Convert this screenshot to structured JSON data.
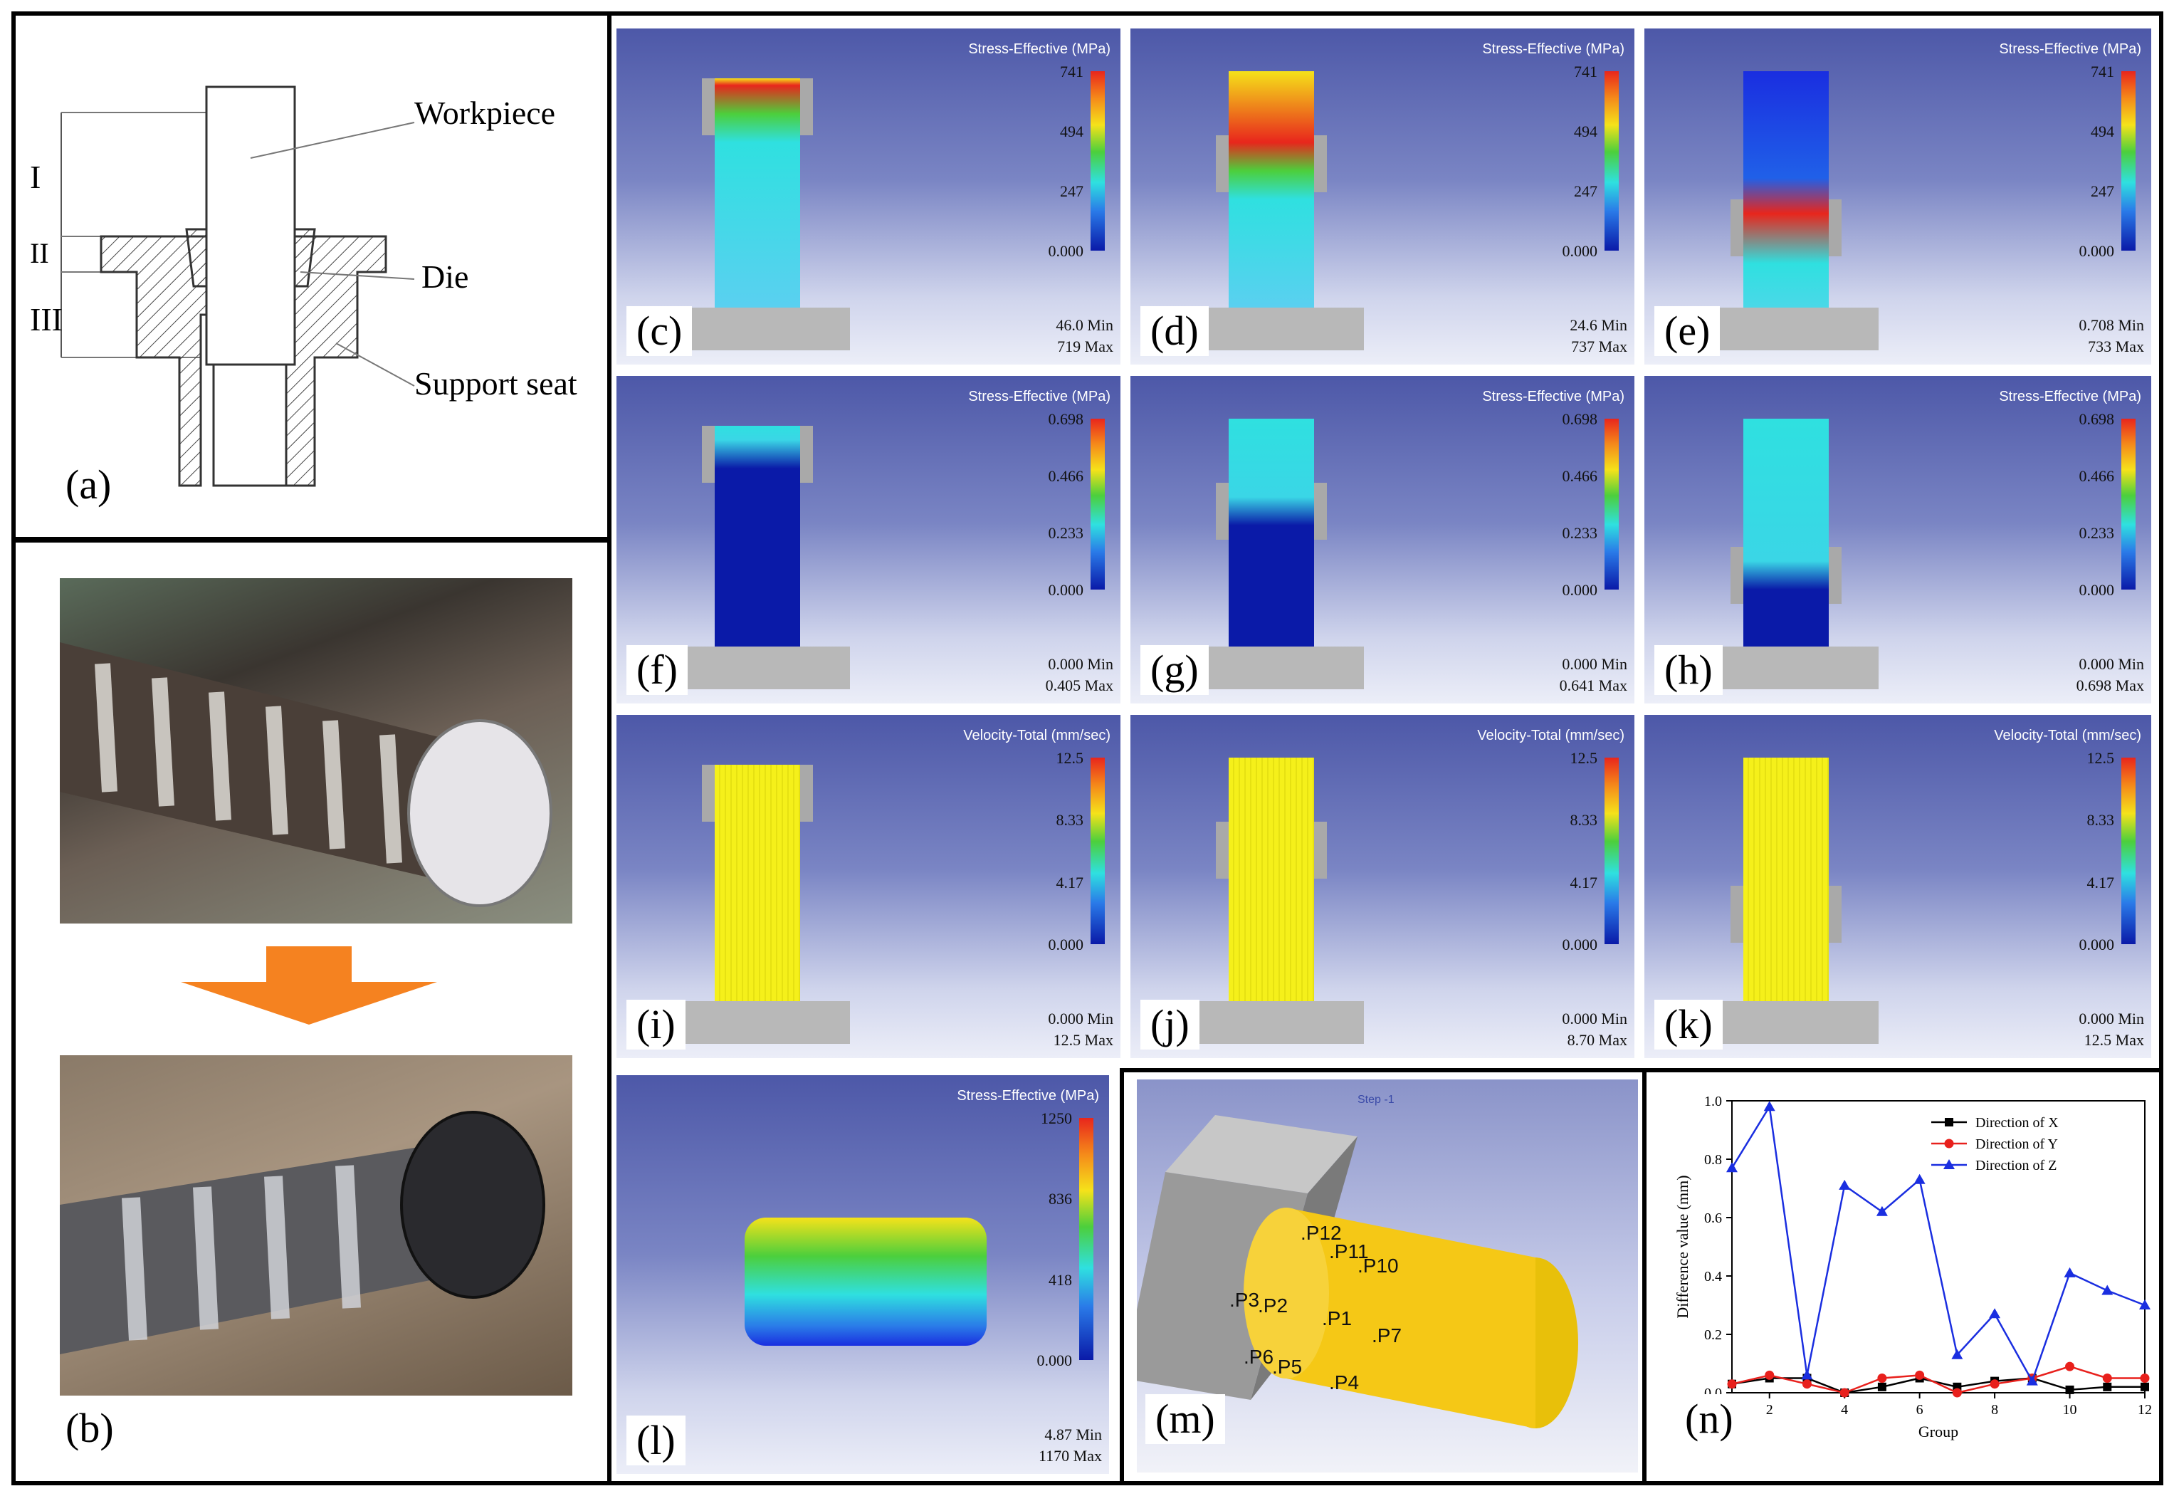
{
  "panels": {
    "a": {
      "label": "(a)",
      "workpiece": "Workpiece",
      "die": "Die",
      "support": "Support seat",
      "zones": [
        "I",
        "II",
        "III"
      ]
    },
    "b": {
      "label": "(b)"
    },
    "c": {
      "label": "(c)",
      "title": "Stress-Effective  (MPa)",
      "ticks": [
        "741",
        "494",
        "247",
        "0.000"
      ],
      "min": "46.0 Min",
      "max": "719 Max"
    },
    "d": {
      "label": "(d)",
      "title": "Stress-Effective  (MPa)",
      "ticks": [
        "741",
        "494",
        "247",
        "0.000"
      ],
      "min": "24.6 Min",
      "max": "737 Max"
    },
    "e": {
      "label": "(e)",
      "title": "Stress-Effective  (MPa)",
      "ticks": [
        "741",
        "494",
        "247",
        "0.000"
      ],
      "min": "0.708 Min",
      "max": "733 Max"
    },
    "f": {
      "label": "(f)",
      "title": "Stress-Effective  (MPa)",
      "ticks": [
        "0.698",
        "0.466",
        "0.233",
        "0.000"
      ],
      "min": "0.000 Min",
      "max": "0.405 Max"
    },
    "g": {
      "label": "(g)",
      "title": "Stress-Effective  (MPa)",
      "ticks": [
        "0.698",
        "0.466",
        "0.233",
        "0.000"
      ],
      "min": "0.000 Min",
      "max": "0.641 Max"
    },
    "h": {
      "label": "(h)",
      "title": "Stress-Effective  (MPa)",
      "ticks": [
        "0.698",
        "0.466",
        "0.233",
        "0.000"
      ],
      "min": "0.000 Min",
      "max": "0.698 Max"
    },
    "i": {
      "label": "(i)",
      "title": "Velocity-Total  (mm/sec)",
      "ticks": [
        "12.5",
        "8.33",
        "4.17",
        "0.000"
      ],
      "min": "0.000 Min",
      "max": "12.5 Max"
    },
    "j": {
      "label": "(j)",
      "title": "Velocity-Total  (mm/sec)",
      "ticks": [
        "12.5",
        "8.33",
        "4.17",
        "0.000"
      ],
      "min": "0.000 Min",
      "max": "8.70 Max"
    },
    "k": {
      "label": "(k)",
      "title": "Velocity-Total  (mm/sec)",
      "ticks": [
        "12.5",
        "8.33",
        "4.17",
        "0.000"
      ],
      "min": "0.000 Min",
      "max": "12.5 Max"
    },
    "l": {
      "label": "(l)",
      "title": "Stress-Effective  (MPa)",
      "ticks": [
        "1250",
        "836",
        "418",
        "0.000"
      ],
      "min": "4.87 Min",
      "max": "1170 Max"
    },
    "m": {
      "label": "(m)",
      "step": "Step -1",
      "points": [
        "P12",
        "P11",
        "P10",
        "P3",
        "P2",
        "P1",
        "P7",
        "P6",
        "P5",
        "P4"
      ]
    },
    "n": {
      "label": "(n)"
    }
  },
  "chart_data": {
    "type": "line",
    "x": [
      1,
      2,
      3,
      4,
      5,
      6,
      7,
      8,
      9,
      10,
      11,
      12
    ],
    "xlabel": "Group",
    "ylabel": "Difference value (mm)",
    "xlim": [
      1,
      12
    ],
    "ylim": [
      0,
      1.0
    ],
    "yticks": [
      "0.0",
      "0.2",
      "0.4",
      "0.6",
      "0.8",
      "1.0"
    ],
    "xticks": [
      "2",
      "4",
      "6",
      "8",
      "10",
      "12"
    ],
    "legend": "top-right",
    "series": [
      {
        "name": "Direction of X",
        "color": "#000000",
        "marker": "square",
        "values": [
          0.03,
          0.05,
          0.05,
          0.0,
          0.02,
          0.05,
          0.02,
          0.04,
          0.05,
          0.01,
          0.02,
          0.02
        ]
      },
      {
        "name": "Direction of Y",
        "color": "#e8201c",
        "marker": "circle",
        "values": [
          0.03,
          0.06,
          0.03,
          0.0,
          0.05,
          0.06,
          0.0,
          0.03,
          0.05,
          0.09,
          0.05,
          0.05
        ]
      },
      {
        "name": "Direction of Z",
        "color": "#1a2ee0",
        "marker": "triangle",
        "values": [
          0.77,
          0.98,
          0.06,
          0.71,
          0.62,
          0.73,
          0.13,
          0.27,
          0.04,
          0.41,
          0.35,
          0.3
        ]
      }
    ]
  }
}
